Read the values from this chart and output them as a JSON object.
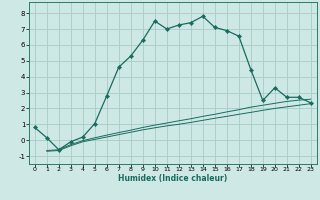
{
  "title": "",
  "xlabel": "Humidex (Indice chaleur)",
  "bg_color": "#cde8e5",
  "grid_color": "#a8ccc9",
  "line_color": "#1a6b5e",
  "spine_color": "#2a7a6a",
  "xlim": [
    -0.5,
    23.5
  ],
  "ylim": [
    -1.5,
    8.7
  ],
  "xticks": [
    0,
    1,
    2,
    3,
    4,
    5,
    6,
    7,
    8,
    9,
    10,
    11,
    12,
    13,
    14,
    15,
    16,
    17,
    18,
    19,
    20,
    21,
    22,
    23
  ],
  "yticks": [
    -1,
    0,
    1,
    2,
    3,
    4,
    5,
    6,
    7,
    8
  ],
  "line1_x": [
    0,
    1,
    2,
    3,
    4,
    5,
    6,
    7,
    8,
    9,
    10,
    11,
    12,
    13,
    14,
    15,
    16,
    17,
    18,
    19,
    20,
    21,
    22,
    23
  ],
  "line1_y": [
    0.8,
    0.15,
    -0.6,
    -0.1,
    0.2,
    1.05,
    2.8,
    4.6,
    5.3,
    6.3,
    7.5,
    7.0,
    7.25,
    7.4,
    7.8,
    7.1,
    6.9,
    6.55,
    4.45,
    2.5,
    3.3,
    2.7,
    2.7,
    2.35
  ],
  "line2_x": [
    1,
    2,
    3,
    4,
    5,
    6,
    7,
    8,
    9,
    10,
    11,
    12,
    13,
    14,
    15,
    16,
    17,
    18,
    19,
    20,
    21,
    22,
    23
  ],
  "line2_y": [
    -0.7,
    -0.65,
    -0.35,
    -0.1,
    0.05,
    0.2,
    0.35,
    0.5,
    0.65,
    0.78,
    0.9,
    1.0,
    1.12,
    1.25,
    1.38,
    1.5,
    1.63,
    1.75,
    1.88,
    2.0,
    2.1,
    2.2,
    2.3
  ],
  "line3_x": [
    1,
    2,
    3,
    4,
    5,
    6,
    7,
    8,
    9,
    10,
    11,
    12,
    13,
    14,
    15,
    16,
    17,
    18,
    19,
    20,
    21,
    22,
    23
  ],
  "line3_y": [
    -0.65,
    -0.6,
    -0.28,
    -0.03,
    0.15,
    0.32,
    0.48,
    0.63,
    0.8,
    0.95,
    1.08,
    1.22,
    1.35,
    1.5,
    1.63,
    1.78,
    1.92,
    2.08,
    2.2,
    2.32,
    2.44,
    2.52,
    2.58
  ]
}
